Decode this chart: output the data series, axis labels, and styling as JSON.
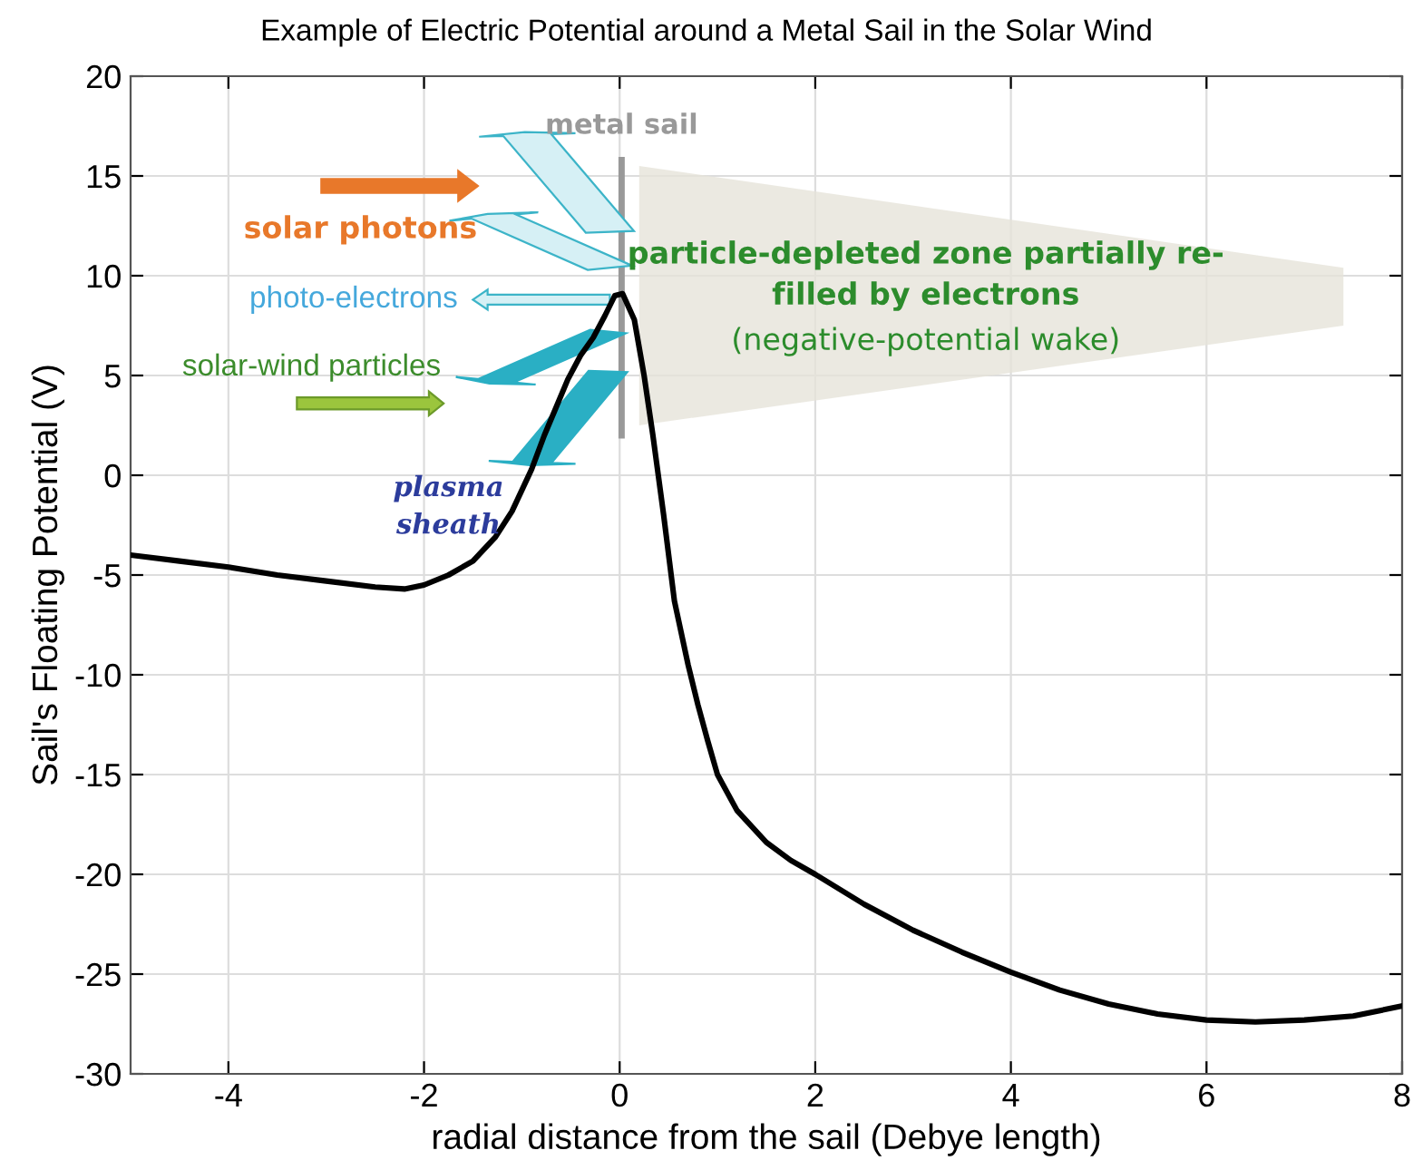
{
  "chart_data": {
    "type": "line",
    "title": "Example of Electric Potential around a Metal Sail in the Solar Wind",
    "xlabel": "radial distance from the sail (Debye length)",
    "ylabel": "Sail's Floating Potential (V)",
    "series": [
      {
        "color": "#000000",
        "x": [
          -5,
          -4.5,
          -4,
          -3.5,
          -3,
          -2.5,
          -2.2,
          -2,
          -1.75,
          -1.5,
          -1.27,
          -1.1,
          -0.9,
          -0.77,
          -0.65,
          -0.53,
          -0.4,
          -0.27,
          -0.15,
          -0.05,
          0.03,
          0.15,
          0.25,
          0.34,
          0.45,
          0.56,
          0.7,
          0.8,
          0.9,
          1.0,
          1.2,
          1.5,
          1.75,
          2,
          2.5,
          3,
          3.5,
          4,
          4.5,
          5,
          5.5,
          6,
          6.5,
          7,
          7.5,
          8
        ],
        "values": [
          -4.0,
          -4.3,
          -4.6,
          -5.0,
          -5.3,
          -5.6,
          -5.7,
          -5.5,
          -5.0,
          -4.3,
          -3.1,
          -1.8,
          0.3,
          2.0,
          3.4,
          4.8,
          6.0,
          6.9,
          8.0,
          9.0,
          9.1,
          7.8,
          5.0,
          2.0,
          -2.0,
          -6.3,
          -9.5,
          -11.5,
          -13.3,
          -15.0,
          -16.8,
          -18.4,
          -19.3,
          -20.0,
          -21.5,
          -22.8,
          -23.9,
          -24.9,
          -25.8,
          -26.5,
          -27.0,
          -27.3,
          -27.4,
          -27.3,
          -27.1,
          -26.6
        ]
      }
    ],
    "xlim": [
      -5,
      8
    ],
    "ylim": [
      -30,
      20
    ],
    "xticks": [
      -4,
      -2,
      0,
      2,
      4,
      6,
      8
    ],
    "yticks": [
      -30,
      -25,
      -20,
      -15,
      -10,
      -5,
      0,
      5,
      10,
      15,
      20
    ],
    "grid": true,
    "line_style": "solid",
    "marker": "none",
    "annotations": [
      "metal sail",
      "solar photons",
      "photo-electrons",
      "solar-wind particles",
      "plasma\nsheath",
      "particle-depleted zone partially re-\nfilled by electrons",
      "(negative-potential wake)"
    ]
  }
}
